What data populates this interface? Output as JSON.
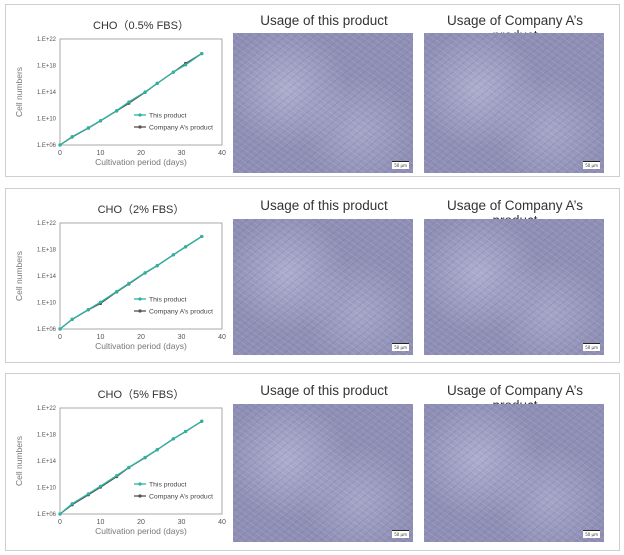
{
  "image_titles": {
    "this": "Usage of this product",
    "company_a": "Usage of Company A’s product"
  },
  "scale_bar": "50 µm",
  "colors": {
    "this_product": "#2bb3a3",
    "company_a": "#5a4e4e",
    "axis": "#888888"
  },
  "chart_data": [
    {
      "type": "line",
      "title": "CHO（0.5% FBS）",
      "xlabel": "Cultivation period (days)",
      "ylabel": "Cell numbers",
      "xlim": [
        0,
        40
      ],
      "ylim": [
        1000000.0,
        1e+22
      ],
      "yscale": "log",
      "xticks": [
        "0",
        "10",
        "20",
        "30",
        "40"
      ],
      "yticks": [
        "1.E+06",
        "1.E+10",
        "1.E+14",
        "1.E+18",
        "1.E+22"
      ],
      "legend": "bottom-right",
      "x": [
        0,
        3,
        7,
        10,
        14,
        17,
        21,
        24,
        28,
        31,
        35
      ],
      "series": [
        {
          "name": "This product",
          "log10_values": [
            6,
            7.26,
            8.6,
            9.67,
            11.2,
            12.5,
            14.0,
            15.3,
            17.0,
            18.1,
            19.8
          ]
        },
        {
          "name": "Company A’s product",
          "log10_values": [
            6,
            7.2,
            8.55,
            9.65,
            11.15,
            12.3,
            13.95,
            15.3,
            17.0,
            18.3,
            19.8
          ]
        }
      ]
    },
    {
      "type": "line",
      "title": "CHO（2% FBS）",
      "xlabel": "Cultivation period (days)",
      "ylabel": "Cell numbers",
      "xlim": [
        0,
        40
      ],
      "ylim": [
        1000000.0,
        1e+22
      ],
      "yscale": "log",
      "xticks": [
        "0",
        "10",
        "20",
        "30",
        "40"
      ],
      "yticks": [
        "1.E+06",
        "1.E+10",
        "1.E+14",
        "1.E+18",
        "1.E+22"
      ],
      "legend": "bottom-right",
      "x": [
        0,
        3,
        7,
        10,
        14,
        17,
        21,
        24,
        28,
        31,
        35
      ],
      "series": [
        {
          "name": "This product",
          "log10_values": [
            6,
            7.47,
            8.94,
            10.05,
            11.67,
            12.89,
            14.5,
            15.57,
            17.2,
            18.4,
            19.97
          ]
        },
        {
          "name": "Company A’s product",
          "log10_values": [
            6,
            7.45,
            8.9,
            9.85,
            11.6,
            12.8,
            14.45,
            15.55,
            17.2,
            18.4,
            19.97
          ]
        }
      ]
    },
    {
      "type": "line",
      "title": "CHO（5% FBS）",
      "xlabel": "Cultivation period (days)",
      "ylabel": "Cell numbers",
      "xlim": [
        0,
        40
      ],
      "ylim": [
        1000000.0,
        1e+22
      ],
      "yscale": "log",
      "xticks": [
        "0",
        "10",
        "20",
        "30",
        "40"
      ],
      "yticks": [
        "1.E+06",
        "1.E+10",
        "1.E+14",
        "1.E+18",
        "1.E+22"
      ],
      "legend": "bottom-right",
      "x": [
        0,
        3,
        7,
        10,
        14,
        17,
        21,
        24,
        28,
        31,
        35
      ],
      "series": [
        {
          "name": "This product",
          "log10_values": [
            6,
            7.55,
            9.05,
            10.2,
            11.8,
            13.05,
            14.55,
            15.7,
            17.35,
            18.45,
            20.0
          ]
        },
        {
          "name": "Company A’s product",
          "log10_values": [
            6,
            7.4,
            8.9,
            10.05,
            11.65,
            13.0,
            14.5,
            15.7,
            17.35,
            18.45,
            20.0
          ]
        }
      ]
    }
  ]
}
